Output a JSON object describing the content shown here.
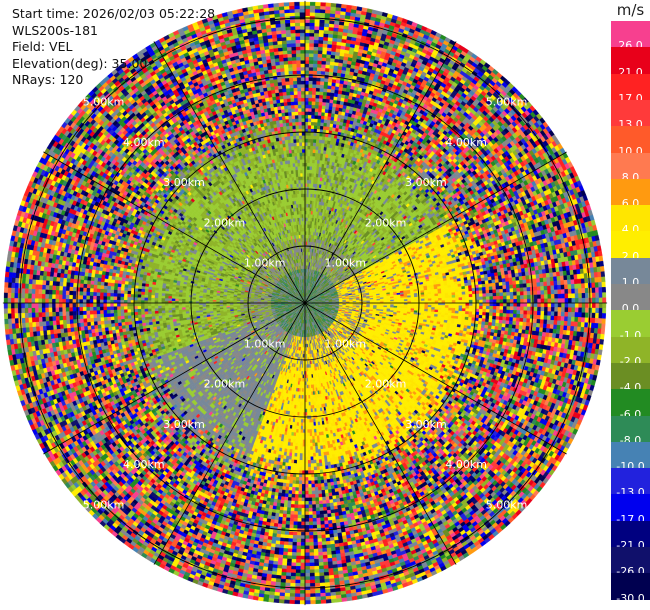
{
  "info": {
    "start_time": "Start time: 2026/02/03 05:22:28",
    "device": "WLS200s-181",
    "field": "Field: VEL",
    "elevation": "Elevation(deg): 35.00",
    "nrays": "NRays: 120"
  },
  "colorbar": {
    "unit": "m/s",
    "entries": [
      {
        "label": "26.0",
        "color": "#f7408f"
      },
      {
        "label": "21.0",
        "color": "#e8001a"
      },
      {
        "label": "17.0",
        "color": "#ff2222"
      },
      {
        "label": "13.0",
        "color": "#ff3a3a"
      },
      {
        "label": "10.0",
        "color": "#ff5a2a"
      },
      {
        "label": "8.0",
        "color": "#ff7a50"
      },
      {
        "label": "6.0",
        "color": "#ff9a10"
      },
      {
        "label": "4.0",
        "color": "#ffe600"
      },
      {
        "label": "2.0",
        "color": "#ffee00"
      },
      {
        "label": "1.0",
        "color": "#778899"
      },
      {
        "label": "0.0",
        "color": "#888888"
      },
      {
        "label": "-1.0",
        "color": "#9acd32"
      },
      {
        "label": "-2.0",
        "color": "#8fb428"
      },
      {
        "label": "-4.0",
        "color": "#6b8e23"
      },
      {
        "label": "-6.0",
        "color": "#228b22"
      },
      {
        "label": "-8.0",
        "color": "#2e8b57"
      },
      {
        "label": "-10.0",
        "color": "#4682b4"
      },
      {
        "label": "-13.0",
        "color": "#2222dd"
      },
      {
        "label": "-17.0",
        "color": "#0000ee"
      },
      {
        "label": "-21.0",
        "color": "#000080"
      },
      {
        "label": "-26.0",
        "color": "#10106b"
      },
      {
        "label": "-30.0",
        "color": "#000050"
      }
    ]
  },
  "chart_data": {
    "type": "heatmap",
    "subtype": "ppi",
    "field": "VEL",
    "elevation_deg": 35.0,
    "n_rays": 120,
    "range_rings_km": [
      1.0,
      2.0,
      3.0,
      4.0,
      5.0
    ],
    "range_labels": [
      "1.00km",
      "2.00km",
      "3.00km",
      "4.00km",
      "5.00km"
    ],
    "max_range_km": 5.3,
    "value_range_ms": [
      -30.0,
      26.0
    ]
  }
}
